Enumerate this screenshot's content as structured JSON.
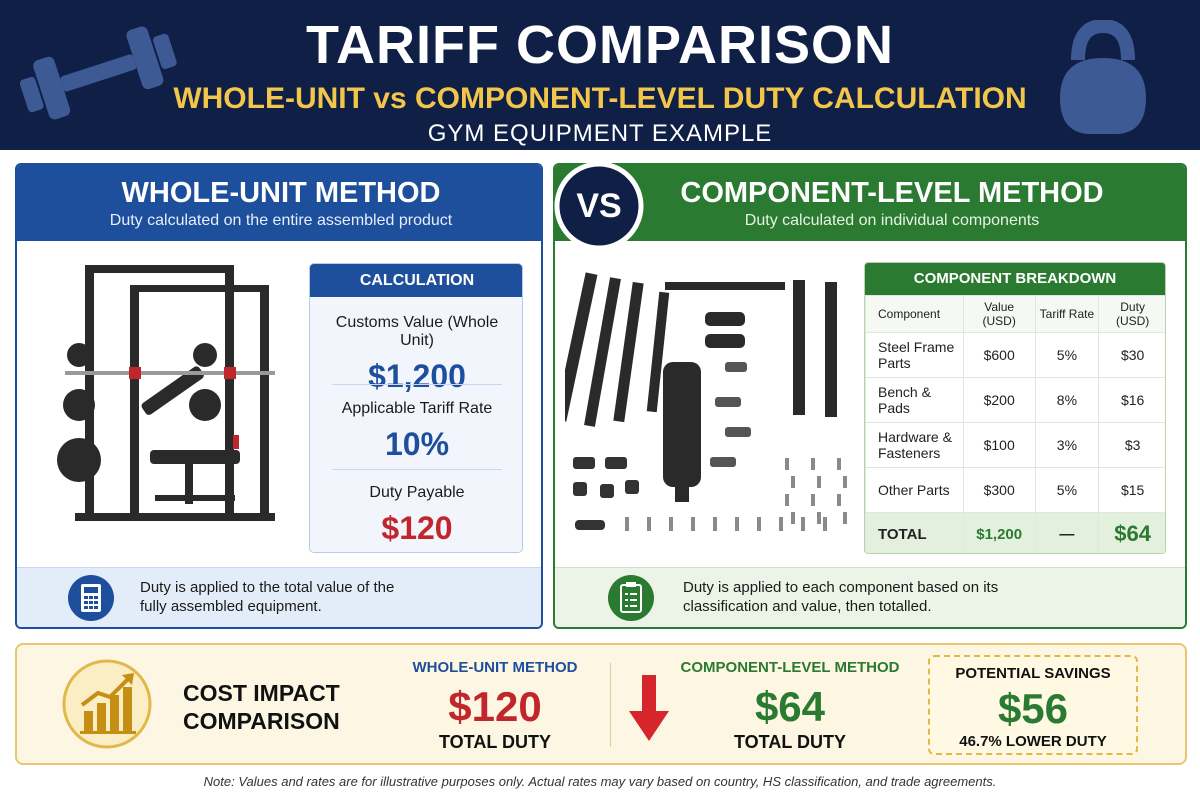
{
  "header": {
    "title": "TARIFF COMPARISON",
    "subtitle": "WHOLE-UNIT vs COMPONENT-LEVEL DUTY CALCULATION",
    "tagline": "GYM EQUIPMENT EXAMPLE"
  },
  "vs": "VS",
  "whole_unit": {
    "title": "WHOLE-UNIT METHOD",
    "description": "Duty calculated on the entire assembled product",
    "calculation": {
      "title": "CALCULATION",
      "items": [
        {
          "label": "Customs Value (Whole Unit)",
          "value": "$1,200"
        },
        {
          "label": "Applicable Tariff Rate",
          "value": "10%"
        },
        {
          "label": "Duty Payable",
          "value": "$120"
        }
      ]
    },
    "note": "Duty is applied to the total value of the fully assembled equipment."
  },
  "component_level": {
    "title": "COMPONENT-LEVEL METHOD",
    "description": "Duty calculated on individual components",
    "table": {
      "title": "COMPONENT BREAKDOWN",
      "columns": [
        "Component",
        "Value (USD)",
        "Tariff Rate",
        "Duty (USD)"
      ],
      "rows": [
        [
          "Steel Frame Parts",
          "$600",
          "5%",
          "$30"
        ],
        [
          "Bench & Pads",
          "$200",
          "8%",
          "$16"
        ],
        [
          "Hardware & Fasteners",
          "$100",
          "3%",
          "$3"
        ],
        [
          "Other Parts",
          "$300",
          "5%",
          "$15"
        ]
      ],
      "total": [
        "TOTAL",
        "$1,200",
        "—",
        "$64"
      ]
    },
    "note": "Duty is applied to each component based on its classification and value, then totalled."
  },
  "cost_impact": {
    "title": "COST IMPACT COMPARISON",
    "whole_unit": {
      "label": "WHOLE-UNIT METHOD",
      "value": "$120",
      "caption": "TOTAL DUTY"
    },
    "component_level": {
      "label": "COMPONENT-LEVEL METHOD",
      "value": "$64",
      "caption": "TOTAL DUTY"
    },
    "savings": {
      "label": "POTENTIAL SAVINGS",
      "value": "$56",
      "caption": "46.7% LOWER DUTY"
    }
  },
  "footnote": "Note: Values and rates are for illustrative purposes only. Actual rates may vary based on country, HS classification, and trade agreements."
}
